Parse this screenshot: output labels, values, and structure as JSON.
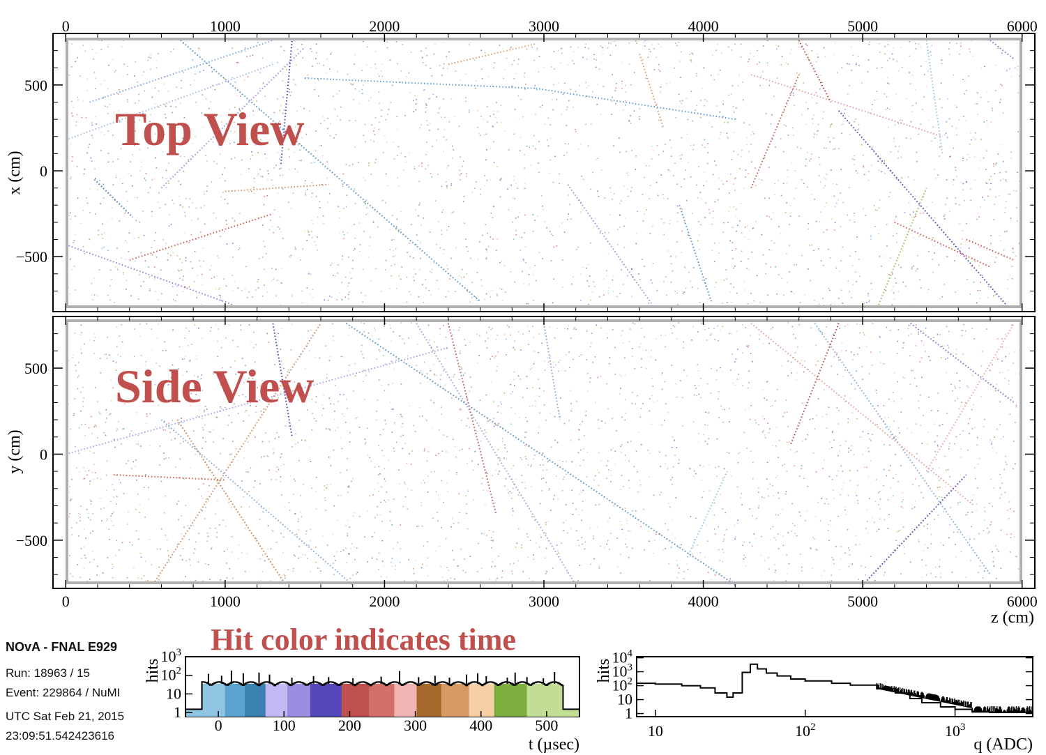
{
  "info": {
    "experiment": "NOvA - FNAL E929",
    "run": "Run:   18963 / 15",
    "event": "Event: 229864 / NuMI",
    "utc_date": "UTC Sat Feb 21, 2015",
    "utc_time": "23:09:51.542423616"
  },
  "caption": "Hit color indicates time",
  "chart_data": [
    {
      "type": "scatter",
      "title": "Top View",
      "xlabel": "",
      "ylabel": "x (cm)",
      "xlim": [
        -80,
        6080
      ],
      "ylim": [
        -820,
        800
      ],
      "x_ticks": [
        "0",
        "1000",
        "2000",
        "3000",
        "4000",
        "5000",
        "6000"
      ],
      "x_tick_values": [
        0,
        1000,
        2000,
        3000,
        4000,
        5000,
        6000
      ],
      "y_ticks": [
        "500",
        "0",
        "−500"
      ],
      "y_tick_values": [
        500,
        0,
        -500
      ],
      "tracks": [
        {
          "x": [
            150,
            1300
          ],
          "y": [
            400,
            760
          ],
          "color": "#7aa6d6"
        },
        {
          "x": [
            720,
            2600
          ],
          "y": [
            760,
            -760
          ],
          "color": "#4f8fbf"
        },
        {
          "x": [
            1500,
            2950
          ],
          "y": [
            540,
            480
          ],
          "color": "#5a9bd5"
        },
        {
          "x": [
            2950,
            4200
          ],
          "y": [
            480,
            300
          ],
          "color": "#5a9bd5"
        },
        {
          "x": [
            0,
            1300
          ],
          "y": [
            180,
            620
          ],
          "color": "#9fb8e0"
        },
        {
          "x": [
            0,
            1050
          ],
          "y": [
            -430,
            -780
          ],
          "color": "#8c7fd6"
        },
        {
          "x": [
            180,
            420
          ],
          "y": [
            -50,
            -270
          ],
          "color": "#3c72b8"
        },
        {
          "x": [
            600,
            1500
          ],
          "y": [
            -100,
            720
          ],
          "color": "#9c8ce0"
        },
        {
          "x": [
            400,
            1300
          ],
          "y": [
            -520,
            -250
          ],
          "color": "#c65a4a"
        },
        {
          "x": [
            1000,
            1650
          ],
          "y": [
            -120,
            -80
          ],
          "color": "#d2885a"
        },
        {
          "x": [
            2400,
            2950
          ],
          "y": [
            620,
            740
          ],
          "color": "#d99a6c"
        },
        {
          "x": [
            3600,
            3750
          ],
          "y": [
            680,
            250
          ],
          "color": "#d4956a"
        },
        {
          "x": [
            3150,
            3680
          ],
          "y": [
            -80,
            -780
          ],
          "color": "#8b9ad8"
        },
        {
          "x": [
            3850,
            4050
          ],
          "y": [
            -200,
            -760
          ],
          "color": "#4f8fbf"
        },
        {
          "x": [
            4300,
            5500
          ],
          "y": [
            560,
            200
          ],
          "color": "#e39a9a"
        },
        {
          "x": [
            4600,
            4800
          ],
          "y": [
            760,
            400
          ],
          "color": "#b0413e"
        },
        {
          "x": [
            4300,
            4600
          ],
          "y": [
            -100,
            560
          ],
          "color": "#c65a4a"
        },
        {
          "x": [
            4850,
            5900
          ],
          "y": [
            350,
            -780
          ],
          "color": "#4b3fb0"
        },
        {
          "x": [
            5200,
            5800
          ],
          "y": [
            -300,
            -560
          ],
          "color": "#c65a4a"
        },
        {
          "x": [
            5650,
            5950
          ],
          "y": [
            -400,
            -520
          ],
          "color": "#c0504d"
        },
        {
          "x": [
            5100,
            5400
          ],
          "y": [
            -780,
            -100
          ],
          "color": "#8fbc5a"
        },
        {
          "x": [
            5400,
            5500
          ],
          "y": [
            760,
            100
          ],
          "color": "#8ec5e0"
        },
        {
          "x": [
            5800,
            5950
          ],
          "y": [
            760,
            650
          ],
          "color": "#7a6fd0"
        },
        {
          "x": [
            1350,
            1420
          ],
          "y": [
            40,
            760
          ],
          "color": "#3c3cb0"
        }
      ]
    },
    {
      "type": "scatter",
      "title": "Side View",
      "xlabel": "z (cm)",
      "ylabel": "y (cm)",
      "xlim": [
        -80,
        6080
      ],
      "ylim": [
        -780,
        800
      ],
      "x_ticks": [
        "0",
        "1000",
        "2000",
        "3000",
        "4000",
        "5000",
        "6000"
      ],
      "x_tick_values": [
        0,
        1000,
        2000,
        3000,
        4000,
        5000,
        6000
      ],
      "y_ticks": [
        "500",
        "0",
        "−500"
      ],
      "y_tick_values": [
        500,
        0,
        -500
      ],
      "tracks": [
        {
          "x": [
            0,
            2400
          ],
          "y": [
            0,
            620
          ],
          "color": "#a99ce6"
        },
        {
          "x": [
            1760,
            4200
          ],
          "y": [
            760,
            -760
          ],
          "color": "#4f8fbf"
        },
        {
          "x": [
            600,
            1800
          ],
          "y": [
            200,
            -760
          ],
          "color": "#7aa6d6"
        },
        {
          "x": [
            700,
            1380
          ],
          "y": [
            200,
            -760
          ],
          "color": "#c07a48"
        },
        {
          "x": [
            560,
            1600
          ],
          "y": [
            -740,
            760
          ],
          "color": "#d2885a"
        },
        {
          "x": [
            300,
            1000
          ],
          "y": [
            -120,
            -150
          ],
          "color": "#c65a4a"
        },
        {
          "x": [
            2200,
            3200
          ],
          "y": [
            760,
            -760
          ],
          "color": "#9aa0d8"
        },
        {
          "x": [
            4700,
            5800
          ],
          "y": [
            760,
            -700
          ],
          "color": "#7aa6d6"
        },
        {
          "x": [
            4300,
            5700
          ],
          "y": [
            760,
            -300
          ],
          "color": "#e39a9a"
        },
        {
          "x": [
            4550,
            4850
          ],
          "y": [
            60,
            760
          ],
          "color": "#b0413e"
        },
        {
          "x": [
            5000,
            5650
          ],
          "y": [
            -760,
            -120
          ],
          "color": "#4b3fb0"
        },
        {
          "x": [
            5400,
            5950
          ],
          "y": [
            -100,
            760
          ],
          "color": "#e8a3a3"
        },
        {
          "x": [
            5300,
            5950
          ],
          "y": [
            760,
            300
          ],
          "color": "#7a6fd0"
        },
        {
          "x": [
            3900,
            4150
          ],
          "y": [
            -600,
            -100
          ],
          "color": "#8ec5e0"
        },
        {
          "x": [
            1300,
            1420
          ],
          "y": [
            760,
            100
          ],
          "color": "#3c3cb0"
        },
        {
          "x": [
            3000,
            3100
          ],
          "y": [
            760,
            200
          ],
          "color": "#7aa6d6"
        },
        {
          "x": [
            2400,
            2700
          ],
          "y": [
            760,
            -350
          ],
          "color": "#c0504d"
        }
      ]
    },
    {
      "type": "bar",
      "title": "",
      "xlabel": "t (µsec)",
      "ylabel": "hits",
      "xlim": [
        -50,
        550
      ],
      "ylim": [
        0.6,
        1000
      ],
      "yscale": "log",
      "x_ticks": [
        "0",
        "100",
        "200",
        "300",
        "400",
        "500"
      ],
      "x_tick_values": [
        0,
        100,
        200,
        300,
        400,
        500
      ],
      "y_ticks": [
        "1",
        "10",
        "10^2",
        "10^3"
      ],
      "y_tick_values": [
        1,
        10,
        100,
        1000
      ],
      "window": [
        -25,
        525
      ],
      "baseline_hits": 35,
      "spike_times": [
        -15,
        5,
        20,
        38,
        62,
        78,
        112,
        145,
        168,
        205,
        248,
        276,
        305,
        330,
        352,
        378,
        395,
        408,
        440,
        452,
        470,
        495,
        512
      ],
      "spike_hits": [
        120,
        95,
        180,
        130,
        140,
        110,
        75,
        90,
        80,
        70,
        85,
        170,
        80,
        95,
        75,
        110,
        130,
        90,
        75,
        140,
        80,
        70,
        150
      ],
      "time_bands": [
        {
          "from": -25,
          "to": 10,
          "color": "#8ec5e0"
        },
        {
          "from": 10,
          "to": 40,
          "color": "#5aa3cf"
        },
        {
          "from": 40,
          "to": 72,
          "color": "#3b82b3"
        },
        {
          "from": 72,
          "to": 105,
          "color": "#c4b9f2"
        },
        {
          "from": 105,
          "to": 140,
          "color": "#9b8ee0"
        },
        {
          "from": 140,
          "to": 188,
          "color": "#5447b8"
        },
        {
          "from": 188,
          "to": 230,
          "color": "#c0504d"
        },
        {
          "from": 230,
          "to": 268,
          "color": "#d4706a"
        },
        {
          "from": 268,
          "to": 302,
          "color": "#f2b3b3"
        },
        {
          "from": 302,
          "to": 340,
          "color": "#a86a2c"
        },
        {
          "from": 340,
          "to": 382,
          "color": "#d89a64"
        },
        {
          "from": 382,
          "to": 420,
          "color": "#f7cfa4"
        },
        {
          "from": 420,
          "to": 470,
          "color": "#7fae40"
        },
        {
          "from": 470,
          "to": 525,
          "color": "#c2de94"
        }
      ]
    },
    {
      "type": "line",
      "title": "",
      "xlabel": "q (ADC)",
      "ylabel": "hits",
      "xscale": "log",
      "yscale": "log",
      "xlim": [
        7.5,
        3300
      ],
      "ylim": [
        0.6,
        12000
      ],
      "x_ticks": [
        "10",
        "10^2",
        "10^3"
      ],
      "x_tick_values": [
        10,
        100,
        1000
      ],
      "y_ticks": [
        "1",
        "10",
        "10^2",
        "10^3",
        "10^4"
      ],
      "y_tick_values": [
        1,
        10,
        100,
        1000,
        10000
      ],
      "x": [
        7.5,
        10,
        15,
        20,
        25,
        30,
        33,
        38,
        43,
        48,
        55,
        65,
        80,
        100,
        150,
        200,
        300,
        400,
        500,
        600,
        800,
        1000,
        1300,
        1700,
        2200,
        3300
      ],
      "y": [
        150,
        130,
        100,
        70,
        30,
        15,
        30,
        900,
        3500,
        1600,
        800,
        500,
        300,
        220,
        150,
        110,
        60,
        30,
        12,
        6,
        3,
        2,
        1.3,
        1.2,
        1.2,
        1.2
      ]
    }
  ]
}
